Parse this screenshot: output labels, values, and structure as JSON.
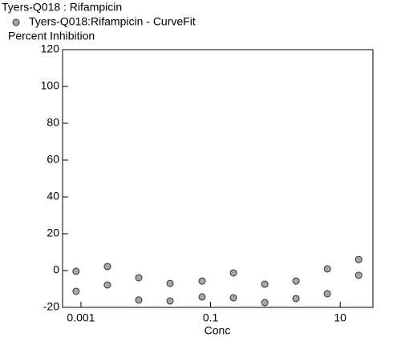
{
  "chart_data": {
    "type": "scatter",
    "title": "Tyers-Q018  : Rifampicin",
    "y_label": "Percent Inhibition",
    "x_label": "Conc",
    "log_x": true,
    "series": [
      {
        "name": "Tyers-Q018:Rifampicin - CurveFit",
        "color": "#a6a6a6",
        "x": [
          0.00084,
          0.00084,
          0.00256,
          0.00256,
          0.0078,
          0.0078,
          0.0237,
          0.0237,
          0.074,
          0.074,
          0.225,
          0.225,
          0.686,
          0.686,
          2.08,
          2.08,
          6.34,
          6.34,
          19.3,
          19.3
        ],
        "values": [
          -0.4,
          -11.3,
          2.2,
          -7.8,
          -3.9,
          -16,
          -7,
          -16.5,
          -5.7,
          -14.3,
          -1.3,
          -14.8,
          -7.4,
          -17.4,
          -5.7,
          -15.2,
          0.9,
          -12.6,
          6,
          -2.6
        ]
      }
    ],
    "xlim": [
      0.00052,
      32
    ],
    "xticks": [
      0.001,
      0.1,
      10
    ],
    "ylim": [
      -20,
      120
    ],
    "yticks": [
      -20,
      0,
      20,
      40,
      60,
      80,
      100,
      120
    ]
  }
}
